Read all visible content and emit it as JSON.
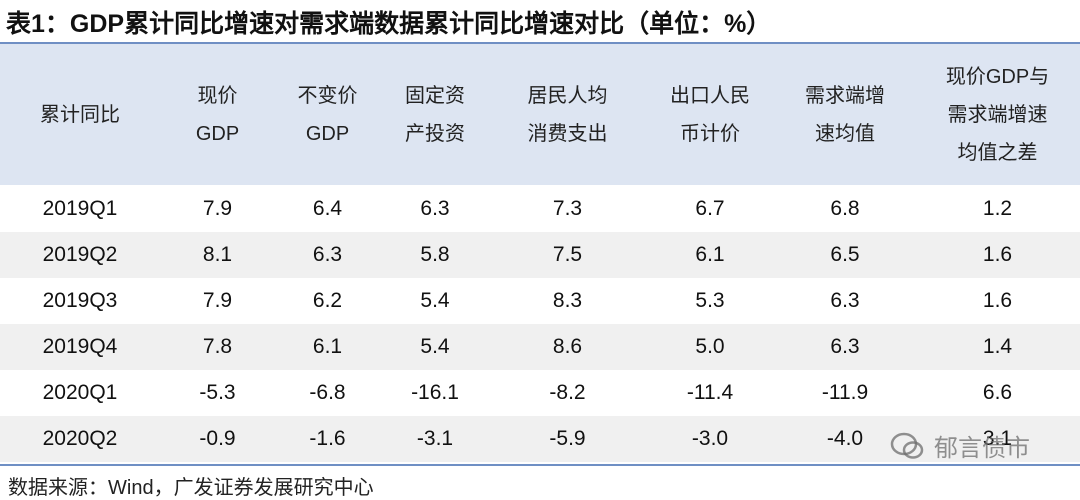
{
  "title": "表1：GDP累计同比增速对需求端数据累计同比增速对比（单位：%）",
  "table": {
    "header": [
      [
        "累计同比"
      ],
      [
        "现价",
        "GDP"
      ],
      [
        "不变价",
        "GDP"
      ],
      [
        "固定资",
        "产投资"
      ],
      [
        "居民人均",
        "消费支出"
      ],
      [
        "出口人民",
        "币计价"
      ],
      [
        "需求端增",
        "速均值"
      ],
      [
        "现价GDP与",
        "需求端增速",
        "均值之差"
      ]
    ],
    "rows": [
      [
        "2019Q1",
        "7.9",
        "6.4",
        "6.3",
        "7.3",
        "6.7",
        "6.8",
        "1.2"
      ],
      [
        "2019Q2",
        "8.1",
        "6.3",
        "5.8",
        "7.5",
        "6.1",
        "6.5",
        "1.6"
      ],
      [
        "2019Q3",
        "7.9",
        "6.2",
        "5.4",
        "8.3",
        "5.3",
        "6.3",
        "1.6"
      ],
      [
        "2019Q4",
        "7.8",
        "6.1",
        "5.4",
        "8.6",
        "5.0",
        "6.3",
        "1.4"
      ],
      [
        "2020Q1",
        "-5.3",
        "-6.8",
        "-16.1",
        "-8.2",
        "-11.4",
        "-11.9",
        "6.6"
      ],
      [
        "2020Q2",
        "-0.9",
        "-1.6",
        "-3.1",
        "-5.9",
        "-3.0",
        "-4.0",
        "3.1"
      ]
    ]
  },
  "source": "数据来源：Wind，广发证券发展研究中心",
  "watermark": "郁言债市"
}
